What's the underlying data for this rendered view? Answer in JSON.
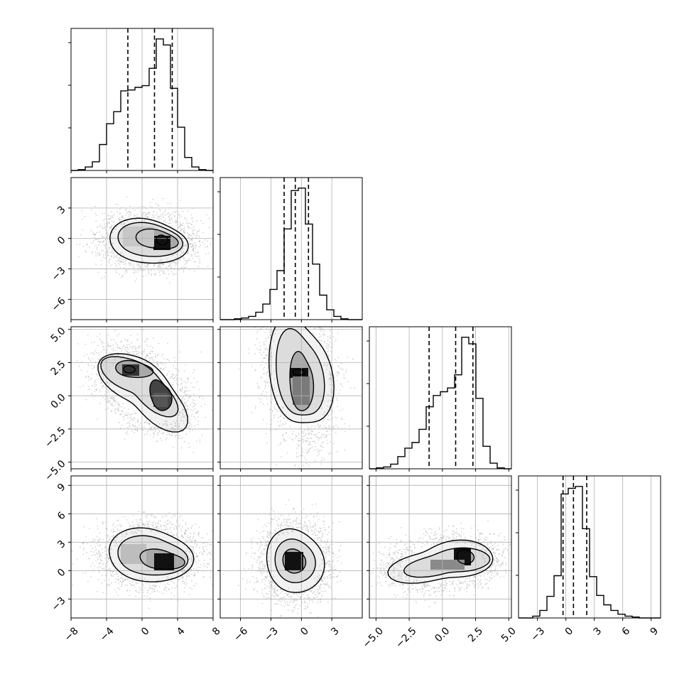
{
  "chart_data": {
    "type": "corner",
    "n_params": 4,
    "grid": true,
    "params": [
      {
        "index": 0,
        "range": [
          -8,
          8
        ],
        "ticks": [
          -8,
          -4,
          0,
          4,
          8
        ],
        "tick_labels": [
          "−8",
          "−4",
          "0",
          "4",
          "8"
        ],
        "quantiles": [
          -1.6,
          1.4,
          3.4
        ]
      },
      {
        "index": 1,
        "range": [
          -8,
          6
        ],
        "ticks": [
          -6,
          -3,
          0,
          3
        ],
        "tick_labels": [
          "−6",
          "−3",
          "0",
          "3"
        ],
        "quantiles": [
          -1.7,
          -0.6,
          0.7
        ]
      },
      {
        "index": 2,
        "range": [
          -5.5,
          5.2
        ],
        "ticks": [
          -5,
          -2.5,
          0,
          2.5,
          5
        ],
        "tick_labels": [
          "−5.0",
          "−2.5",
          "0.0",
          "2.5",
          "5.0"
        ],
        "quantiles": [
          -1.0,
          1.0,
          2.3
        ]
      },
      {
        "index": 3,
        "range": [
          -5,
          10
        ],
        "ticks": [
          -3,
          0,
          3,
          6,
          9
        ],
        "tick_labels": [
          "−3",
          "0",
          "3",
          "6",
          "9"
        ],
        "quantiles": [
          -0.3,
          0.8,
          2.2
        ]
      }
    ],
    "histograms": [
      {
        "param": 0,
        "bin_edges": [
          -8,
          -7.2,
          -6.4,
          -5.6,
          -4.8,
          -4,
          -3.2,
          -2.4,
          -1.6,
          -0.8,
          0,
          0.8,
          1.6,
          2.4,
          3.2,
          4,
          4.8,
          5.6,
          6.4,
          7.2,
          8
        ],
        "counts": [
          0,
          1,
          4,
          10,
          30,
          54,
          68,
          92,
          93,
          96,
          98,
          118,
          152,
          145,
          95,
          50,
          15,
          4,
          1,
          0
        ]
      },
      {
        "param": 1,
        "bin_edges": [
          -8,
          -7.3,
          -6.6,
          -5.9,
          -5.2,
          -4.5,
          -3.8,
          -3.1,
          -2.4,
          -1.7,
          -1.0,
          -0.3,
          0.4,
          1.1,
          1.8,
          2.5,
          3.2,
          3.9,
          4.6,
          5.3,
          6.0
        ],
        "counts": [
          0,
          0,
          1,
          2,
          4,
          9,
          19,
          37,
          60,
          111,
          158,
          161,
          117,
          68,
          30,
          12,
          4,
          1,
          0,
          0
        ]
      },
      {
        "param": 2,
        "bin_edges": [
          -5.5,
          -4.965,
          -4.43,
          -3.895,
          -3.36,
          -2.825,
          -2.29,
          -1.755,
          -1.22,
          -0.685,
          -0.15,
          0.385,
          0.92,
          1.455,
          1.99,
          2.525,
          3.06,
          3.595,
          4.13,
          4.665,
          5.2
        ],
        "counts": [
          0,
          1,
          2,
          5,
          13,
          22,
          28,
          42,
          66,
          78,
          82,
          86,
          100,
          140,
          133,
          75,
          24,
          6,
          1,
          0
        ]
      },
      {
        "param": 3,
        "bin_edges": [
          -5,
          -4.25,
          -3.5,
          -2.75,
          -2,
          -1.25,
          -0.5,
          0.25,
          1,
          1.75,
          2.5,
          3.25,
          4,
          4.75,
          5.5,
          6.25,
          7,
          7.75,
          8.5,
          9.25,
          10
        ],
        "counts": [
          0,
          0,
          2,
          8,
          23,
          45,
          132,
          138,
          140,
          95,
          44,
          24,
          14,
          8,
          4,
          2,
          1,
          0,
          0,
          0
        ]
      }
    ],
    "contour_panels": [
      {
        "x_param": 0,
        "y_param": 1,
        "samples_center": [
          0.5,
          -0.3
        ]
      },
      {
        "x_param": 0,
        "y_param": 2,
        "samples_center": [
          0.5,
          0.5
        ]
      },
      {
        "x_param": 1,
        "y_param": 2,
        "samples_center": [
          -0.6,
          0.5
        ]
      },
      {
        "x_param": 0,
        "y_param": 3,
        "samples_center": [
          0.5,
          0.8
        ]
      },
      {
        "x_param": 1,
        "y_param": 3,
        "samples_center": [
          -0.6,
          0.8
        ]
      },
      {
        "x_param": 2,
        "y_param": 3,
        "samples_center": [
          0.5,
          0.8
        ]
      }
    ]
  }
}
